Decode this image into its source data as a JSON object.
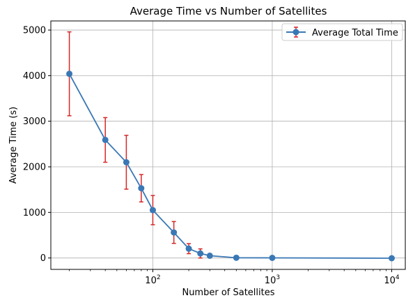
{
  "chart_data": {
    "type": "line",
    "title": "Average Time vs Number of Satellites",
    "xlabel": "Number of Satellites",
    "ylabel": "Average Time (s)",
    "xscale": "log",
    "xlim": [
      14,
      13000
    ],
    "ylim": [
      -250,
      5200
    ],
    "grid": true,
    "legend_position": "top-right",
    "x_ticks": [
      {
        "value": 100,
        "base": "10",
        "exp": "2"
      },
      {
        "value": 1000,
        "base": "10",
        "exp": "3"
      },
      {
        "value": 10000,
        "base": "10",
        "exp": "4"
      }
    ],
    "y_ticks": [
      0,
      1000,
      2000,
      3000,
      4000,
      5000
    ],
    "series": [
      {
        "name": "Average Total Time",
        "color": "#3a78b5",
        "error_color": "#d62728",
        "x": [
          20,
          40,
          60,
          80,
          100,
          150,
          200,
          250,
          300,
          500,
          1000,
          10000
        ],
        "y": [
          4040,
          2590,
          2100,
          1530,
          1050,
          560,
          205,
          100,
          50,
          5,
          3,
          -5
        ],
        "yerr": [
          920,
          490,
          590,
          300,
          320,
          240,
          110,
          100,
          40,
          0,
          0,
          0
        ]
      }
    ]
  }
}
